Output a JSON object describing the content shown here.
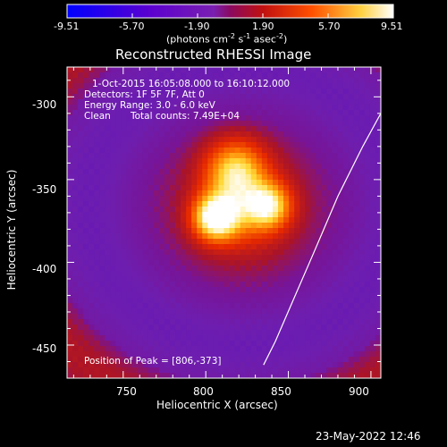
{
  "chart_data": {
    "type": "heatmap",
    "title": "Reconstructed RHESSI Image",
    "xlabel": "Heliocentric X (arcsec)",
    "ylabel": "Heliocentric Y (arcsec)",
    "xlim": [
      716,
      906
    ],
    "ylim": [
      -470,
      -282
    ],
    "xticks": [
      750,
      800,
      850,
      900
    ],
    "yticks": [
      -300,
      -350,
      -400,
      -450
    ],
    "colorbar": {
      "ticks": [
        "-9.51",
        "-5.70",
        "-1.90",
        "1.90",
        "5.70",
        "9.51"
      ],
      "label_parts": [
        "(photons cm",
        "-2",
        " s",
        "-1",
        " asec",
        "-2",
        ")"
      ],
      "range": [
        -9.51,
        9.51
      ],
      "colors": [
        "#0000ff",
        "#6000c8",
        "#7a1fb0",
        "#b01020",
        "#ff3000",
        "#ff9a00",
        "#ffff60",
        "#ffffff"
      ]
    },
    "annotations": {
      "time": "1-Oct-2015 16:05:08.000 to 16:10:12.000",
      "detectors": "Detectors: 1F 5F 7F, Att 0",
      "energy": "Energy Range: 3.0 - 6.0 keV",
      "clean": "Clean",
      "counts": "Total counts: 7.49E+04",
      "peak": "Position of Peak = [806,-373]"
    },
    "peak": {
      "x": 806,
      "y": -373
    },
    "sources": [
      {
        "x": 806,
        "y": -373,
        "amp": 9.0,
        "sigma": 9
      },
      {
        "x": 838,
        "y": -366,
        "amp": 6.5,
        "sigma": 9
      },
      {
        "x": 818,
        "y": -344,
        "amp": 6.0,
        "sigma": 12
      },
      {
        "x": 822,
        "y": -366,
        "amp": 4.5,
        "sigma": 16
      }
    ],
    "limb": [
      [
        906,
        -310
      ],
      [
        895,
        -330
      ],
      [
        880,
        -360
      ],
      [
        865,
        -395
      ],
      [
        852,
        -425
      ],
      [
        842,
        -448
      ],
      [
        835,
        -462
      ]
    ]
  },
  "footer": {
    "date": "23-May-2022 12:46"
  }
}
